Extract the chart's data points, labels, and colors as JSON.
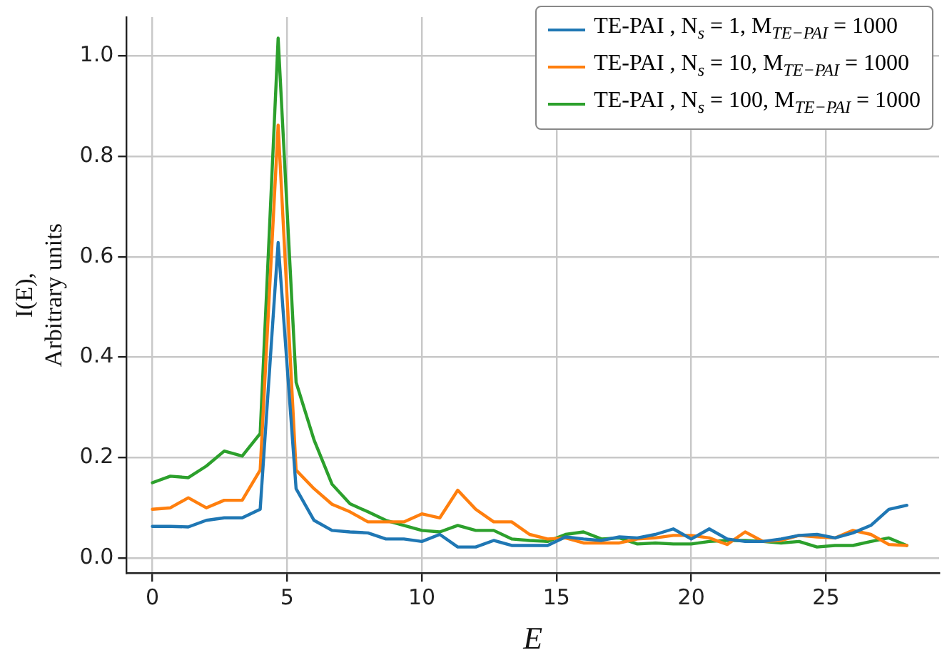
{
  "chart_data": {
    "type": "line",
    "xlabel": "E",
    "ylabel": "I(E),\nArbitrary units",
    "x": [
      0,
      0.667,
      1.333,
      2,
      2.667,
      3.333,
      4,
      4.667,
      5.333,
      6,
      6.667,
      7.333,
      8,
      8.667,
      9.333,
      10,
      10.667,
      11.333,
      12,
      12.667,
      13.333,
      14,
      14.667,
      15.333,
      16,
      16.667,
      17.333,
      18,
      18.667,
      19.333,
      20,
      20.667,
      21.333,
      22,
      22.667,
      23.333,
      24,
      24.667,
      25.333,
      26,
      26.667,
      27.333,
      28
    ],
    "series": [
      {
        "name": "TE-PAI , N$_{s}$ = 1,  M$_{TE−PAI}$ = 1000",
        "color": "#1f77b4",
        "values": [
          0.063,
          0.063,
          0.062,
          0.075,
          0.08,
          0.08,
          0.097,
          0.628,
          0.138,
          0.075,
          0.055,
          0.052,
          0.05,
          0.038,
          0.038,
          0.033,
          0.047,
          0.022,
          0.022,
          0.035,
          0.025,
          0.025,
          0.025,
          0.042,
          0.038,
          0.035,
          0.042,
          0.04,
          0.047,
          0.058,
          0.038,
          0.058,
          0.038,
          0.033,
          0.033,
          0.038,
          0.045,
          0.047,
          0.04,
          0.05,
          0.065,
          0.097,
          0.105
        ]
      },
      {
        "name": "TE-PAI , N$_{s}$ = 10,  M$_{TE−PAI}$ = 1000",
        "color": "#ff7f0e",
        "values": [
          0.097,
          0.1,
          0.12,
          0.1,
          0.115,
          0.115,
          0.175,
          0.862,
          0.175,
          0.138,
          0.107,
          0.092,
          0.072,
          0.072,
          0.072,
          0.088,
          0.08,
          0.135,
          0.097,
          0.072,
          0.072,
          0.047,
          0.038,
          0.04,
          0.03,
          0.03,
          0.03,
          0.038,
          0.04,
          0.045,
          0.045,
          0.04,
          0.027,
          0.052,
          0.033,
          0.035,
          0.045,
          0.042,
          0.04,
          0.055,
          0.047,
          0.027,
          0.025
        ]
      },
      {
        "name": "TE-PAI , N$_{s}$ = 100,  M$_{TE−PAI}$ = 1000",
        "color": "#2ca02c",
        "values": [
          0.15,
          0.163,
          0.16,
          0.183,
          0.213,
          0.203,
          0.248,
          1.035,
          0.35,
          0.235,
          0.147,
          0.108,
          0.092,
          0.075,
          0.065,
          0.055,
          0.052,
          0.065,
          0.055,
          0.055,
          0.038,
          0.035,
          0.033,
          0.047,
          0.052,
          0.038,
          0.04,
          0.028,
          0.03,
          0.028,
          0.028,
          0.033,
          0.035,
          0.035,
          0.033,
          0.03,
          0.033,
          0.022,
          0.025,
          0.025,
          0.033,
          0.04,
          0.025
        ]
      }
    ],
    "xlim": [
      -0.96,
      29.2
    ],
    "xticks": [
      0,
      5,
      10,
      15,
      20,
      25
    ],
    "ylim": [
      -0.03,
      1.077
    ],
    "yticks": [
      {
        "value": 0,
        "label": "0.0"
      },
      {
        "value": 0.2,
        "label": "0.2"
      },
      {
        "value": 0.4,
        "label": "0.4"
      },
      {
        "value": 0.6,
        "label": "0.6"
      },
      {
        "value": 0.8,
        "label": "0.8"
      },
      {
        "value": 1,
        "label": "1.0"
      }
    ],
    "grid": true,
    "legend": "top right",
    "line_style": "solid",
    "marker": "none"
  }
}
